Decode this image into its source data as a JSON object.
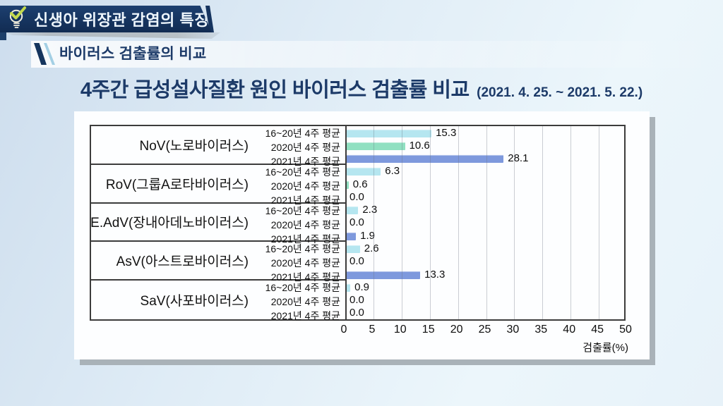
{
  "header": {
    "title": "신생아 위장관 감염의 특징",
    "icon": "lightbulb-check-icon"
  },
  "subtitle": {
    "text": "바이러스 검출률의 비교"
  },
  "chart_title": {
    "main": "4주간 급성설사질환 원인 바이러스 검출률 비교",
    "period": "(2021. 4. 25. ~ 2021. 5. 22.)"
  },
  "chart_data": {
    "type": "bar",
    "orientation": "horizontal",
    "title": "4주간 급성설사질환 원인 바이러스 검출률 비교 (2021. 4. 25. ~ 2021. 5. 22.)",
    "xlabel": "검출률(%)",
    "xlim": [
      0,
      50
    ],
    "x_ticks": [
      0,
      5,
      10,
      15,
      20,
      25,
      30,
      35,
      40,
      45,
      50
    ],
    "grid": true,
    "series_labels": [
      "16~20년 4주 평균",
      "2020년 4주 평균",
      "2021년 4주 평균"
    ],
    "series_colors": [
      "#b5e6f0",
      "#90e0c1",
      "#7e99dd"
    ],
    "groups": [
      {
        "name": "NoV(노로바이러스)",
        "values": [
          15.3,
          10.6,
          28.1
        ]
      },
      {
        "name": "RoV(그룹A로타바이러스)",
        "values": [
          6.3,
          0.6,
          0.0
        ]
      },
      {
        "name": "E.AdV(장내아데노바이러스)",
        "values": [
          2.3,
          0.0,
          1.9
        ]
      },
      {
        "name": "AsV(아스트로바이러스)",
        "values": [
          2.6,
          0.0,
          13.3
        ]
      },
      {
        "name": "SaV(사포바이러스)",
        "values": [
          0.9,
          0.0,
          0.0
        ]
      }
    ]
  },
  "colors": {
    "banner_navy": "#16345f",
    "title_navy": "#1c3a68",
    "background_blue": "#dfecf6",
    "panel_shadow": "#a9b2b8",
    "grid_gray": "#697380"
  }
}
